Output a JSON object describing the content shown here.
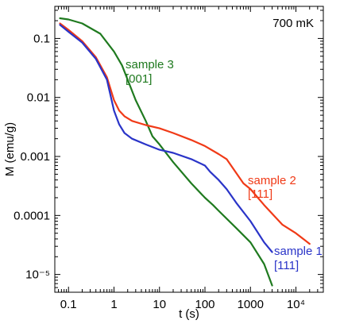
{
  "chart_data": {
    "type": "line",
    "xscale": "log",
    "yscale": "log",
    "xlabel": "t (s)",
    "ylabel": "M  (emu/g)",
    "xlim": [
      0.05,
      40000
    ],
    "ylim": [
      5e-06,
      0.35
    ],
    "grid": false,
    "annotation": "700 mK",
    "xticks": [
      {
        "value": 0.1,
        "label": "0.1"
      },
      {
        "value": 1,
        "label": "1"
      },
      {
        "value": 10,
        "label": "10"
      },
      {
        "value": 100,
        "label": "100"
      },
      {
        "value": 1000,
        "label": "1000"
      },
      {
        "value": 10000,
        "label": "10⁴"
      }
    ],
    "yticks": [
      {
        "value": 0.1,
        "label": "0.1"
      },
      {
        "value": 0.01,
        "label": "0.01"
      },
      {
        "value": 0.001,
        "label": "0.001"
      },
      {
        "value": 0.0001,
        "label": "0.0001"
      },
      {
        "value": 1e-05,
        "label": "10⁻⁵"
      }
    ],
    "series": [
      {
        "name": "sample 1",
        "direction": "[111]",
        "color": "#2a34c8",
        "x": [
          0.065,
          0.1,
          0.2,
          0.4,
          0.7,
          1.0,
          1.3,
          1.7,
          2.5,
          5,
          10,
          20,
          50,
          100,
          130,
          200,
          300,
          500,
          1000,
          2000,
          3000
        ],
        "y": [
          0.17,
          0.13,
          0.085,
          0.045,
          0.02,
          0.006,
          0.0035,
          0.0025,
          0.002,
          0.0016,
          0.0013,
          0.00115,
          0.0009,
          0.0007,
          0.00055,
          0.0004,
          0.00028,
          0.00016,
          8e-05,
          3.5e-05,
          2.4e-05
        ]
      },
      {
        "name": "sample 2",
        "direction": "[111]",
        "color": "#f03a17",
        "x": [
          0.065,
          0.1,
          0.2,
          0.4,
          0.7,
          1.0,
          1.3,
          1.7,
          2.5,
          5,
          10,
          20,
          50,
          100,
          200,
          300,
          700,
          1000,
          2000,
          5000,
          10000,
          20000
        ],
        "y": [
          0.18,
          0.14,
          0.09,
          0.048,
          0.022,
          0.009,
          0.006,
          0.0048,
          0.004,
          0.0034,
          0.003,
          0.0025,
          0.0019,
          0.0015,
          0.0011,
          0.0009,
          0.00035,
          0.00028,
          0.00015,
          7e-05,
          5e-05,
          3.3e-05
        ]
      },
      {
        "name": "sample 3",
        "direction": "[001]",
        "color": "#1f7a1f",
        "x": [
          0.065,
          0.1,
          0.2,
          0.5,
          1.0,
          1.5,
          2,
          3,
          5,
          7,
          10,
          20,
          50,
          100,
          150,
          200,
          500,
          1000,
          2000,
          3000
        ],
        "y": [
          0.22,
          0.21,
          0.18,
          0.12,
          0.06,
          0.035,
          0.02,
          0.009,
          0.004,
          0.0022,
          0.0016,
          0.0008,
          0.00035,
          0.0002,
          0.00015,
          0.00012,
          6e-05,
          3.5e-05,
          1.5e-05,
          6.5e-06
        ]
      }
    ]
  }
}
